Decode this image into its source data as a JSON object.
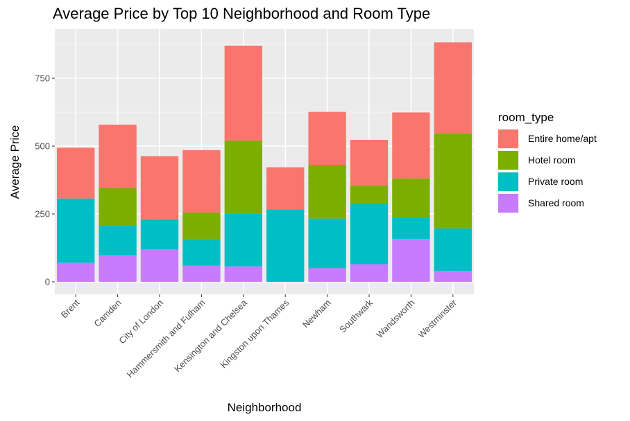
{
  "chart_data": {
    "type": "bar",
    "stacked": true,
    "title": "Average Price by  Top 10 Neighborhood and Room Type",
    "xlabel": "Neighborhood",
    "ylabel": "Average Price",
    "ylim": [
      0,
      900
    ],
    "yticks": [
      0,
      250,
      500,
      750
    ],
    "grid": true,
    "legend_position": "right",
    "legend_title": "room_type",
    "categories": [
      "Brent",
      "Camden",
      "City of London",
      "Hammersmith and Fulham",
      "Kensington and Chelsea",
      "Kingston upon Thames",
      "Newham",
      "Southwark",
      "Wandsworth",
      "Westminster"
    ],
    "series": [
      {
        "name": "Shared room",
        "color": "#C77CFF",
        "values": [
          70,
          98,
          120,
          60,
          57,
          0,
          50,
          65,
          158,
          40
        ]
      },
      {
        "name": "Private room",
        "color": "#00BFC4",
        "values": [
          237,
          108,
          110,
          95,
          193,
          267,
          183,
          223,
          80,
          157
        ]
      },
      {
        "name": "Hotel room",
        "color": "#7CAE00",
        "values": [
          0,
          140,
          0,
          100,
          270,
          0,
          198,
          67,
          143,
          350
        ]
      },
      {
        "name": "Entire home/apt",
        "color": "#F8766D",
        "values": [
          187,
          233,
          233,
          230,
          350,
          155,
          195,
          168,
          243,
          335
        ]
      }
    ],
    "legend_order": [
      "Entire home/apt",
      "Hotel room",
      "Private room",
      "Shared room"
    ]
  }
}
